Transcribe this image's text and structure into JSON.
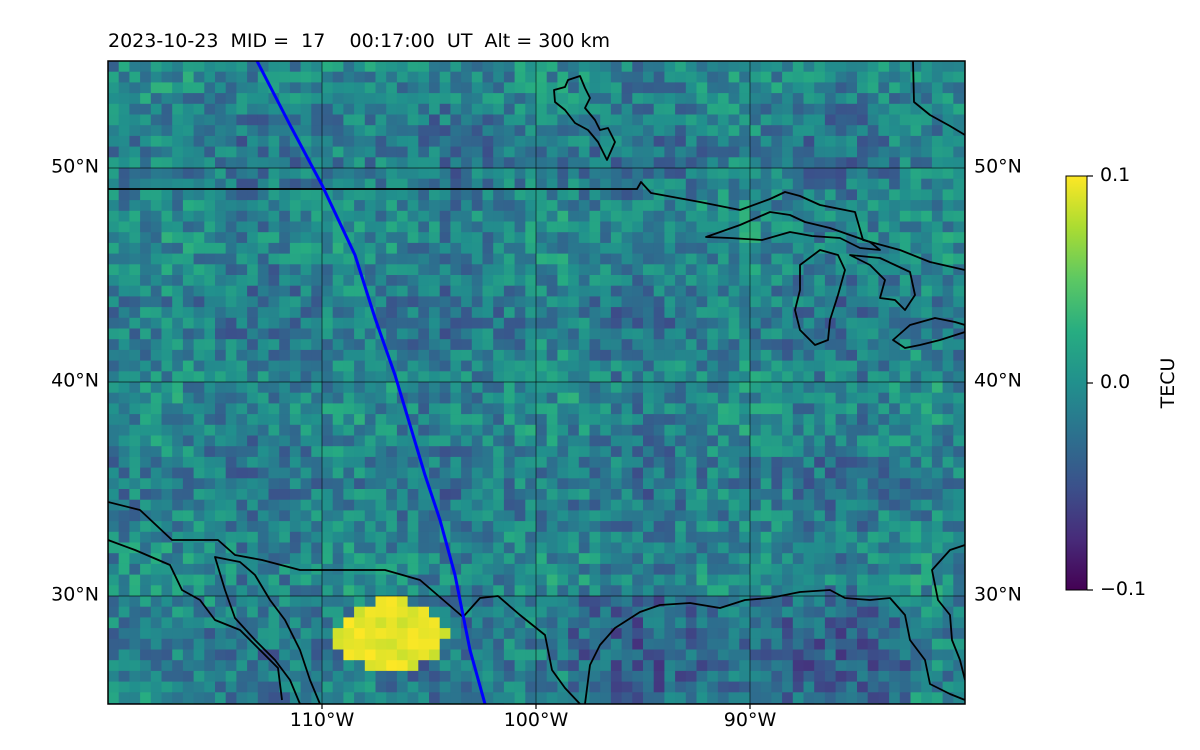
{
  "title": "2023-10-23  MID =  17    00:17:00  UT  Alt = 300 km",
  "map": {
    "lat_ticks": [
      "50°N",
      "40°N",
      "30°N"
    ],
    "lon_ticks": [
      "110°W",
      "100°W",
      "90°W"
    ],
    "grid": true,
    "track_color": "#0000ff",
    "coastline_color": "#000000"
  },
  "colorbar": {
    "title": "TECU",
    "colormap": "viridis",
    "tick_labels": [
      "0.1",
      "0.0",
      "−0.1"
    ],
    "min": -0.1,
    "max": 0.1
  }
}
